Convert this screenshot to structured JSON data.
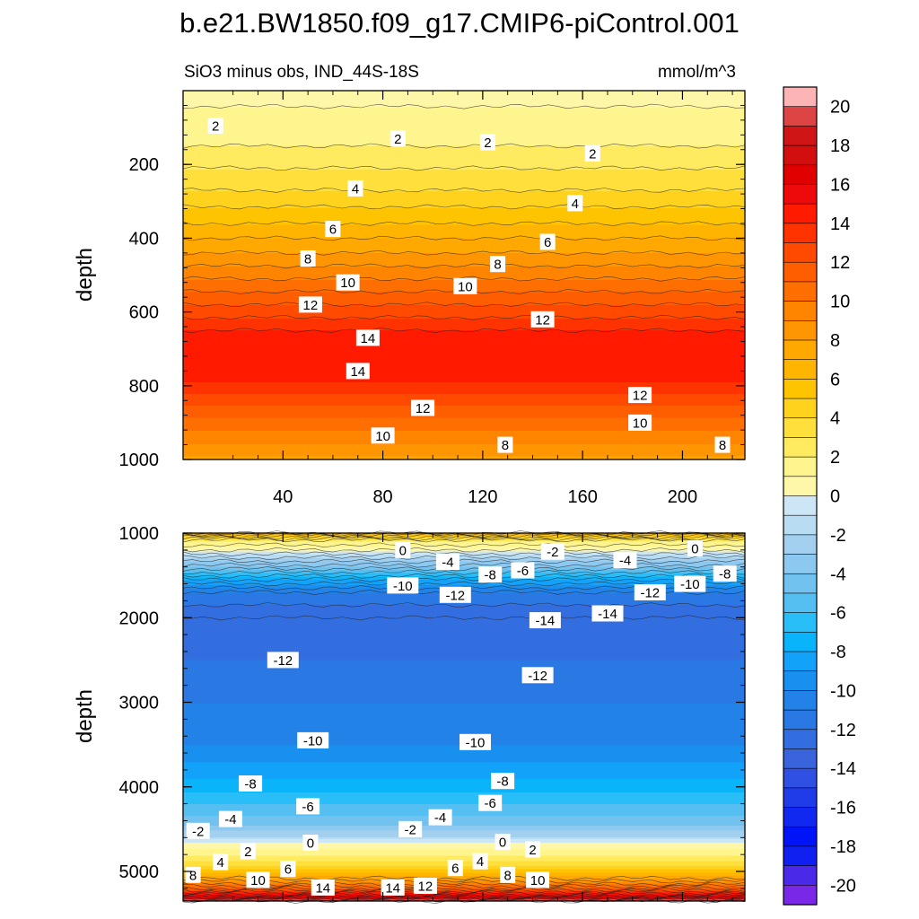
{
  "title": "b.e21.BW1850.f09_g17.CMIP6-piControl.001",
  "chart_data": [
    {
      "type": "heatmap",
      "panel": "top",
      "subtitle_left": "SiO3 minus obs, IND_44S-18S",
      "subtitle_right": "mmol/m^3",
      "ylabel": "depth",
      "xlim": [
        0,
        225
      ],
      "ylim": [
        0,
        1000
      ],
      "y_inverted": true,
      "xticks": [
        40,
        80,
        120,
        160,
        200
      ],
      "yticks": [
        200,
        400,
        600,
        800,
        1000
      ],
      "profile": [
        {
          "depth": 0,
          "value": 0.5
        },
        {
          "depth": 60,
          "value": 1.2
        },
        {
          "depth": 150,
          "value": 2
        },
        {
          "depth": 270,
          "value": 4
        },
        {
          "depth": 360,
          "value": 6
        },
        {
          "depth": 440,
          "value": 8
        },
        {
          "depth": 510,
          "value": 10
        },
        {
          "depth": 580,
          "value": 12
        },
        {
          "depth": 650,
          "value": 14
        },
        {
          "depth": 720,
          "value": 14.8
        },
        {
          "depth": 790,
          "value": 14
        },
        {
          "depth": 850,
          "value": 12
        },
        {
          "depth": 920,
          "value": 10
        },
        {
          "depth": 990,
          "value": 8
        },
        {
          "depth": 1000,
          "value": 7.8
        }
      ],
      "contour_labels": [
        {
          "text": "2",
          "x": 13,
          "depth": 95
        },
        {
          "text": "2",
          "x": 86,
          "depth": 130
        },
        {
          "text": "2",
          "x": 122,
          "depth": 140
        },
        {
          "text": "2",
          "x": 164,
          "depth": 170
        },
        {
          "text": "4",
          "x": 69,
          "depth": 265
        },
        {
          "text": "4",
          "x": 157,
          "depth": 305
        },
        {
          "text": "6",
          "x": 60,
          "depth": 375
        },
        {
          "text": "6",
          "x": 146,
          "depth": 410
        },
        {
          "text": "8",
          "x": 50,
          "depth": 455
        },
        {
          "text": "8",
          "x": 126,
          "depth": 470
        },
        {
          "text": "10",
          "x": 66,
          "depth": 520
        },
        {
          "text": "10",
          "x": 113,
          "depth": 530
        },
        {
          "text": "12",
          "x": 51,
          "depth": 580
        },
        {
          "text": "12",
          "x": 144,
          "depth": 620
        },
        {
          "text": "14",
          "x": 74,
          "depth": 670
        },
        {
          "text": "14",
          "x": 70,
          "depth": 760
        },
        {
          "text": "12",
          "x": 96,
          "depth": 860
        },
        {
          "text": "10",
          "x": 80,
          "depth": 935
        },
        {
          "text": "8",
          "x": 129,
          "depth": 960
        },
        {
          "text": "12",
          "x": 183,
          "depth": 825
        },
        {
          "text": "10",
          "x": 183,
          "depth": 900
        },
        {
          "text": "8",
          "x": 216,
          "depth": 960
        }
      ]
    },
    {
      "type": "heatmap",
      "panel": "bottom",
      "ylabel": "depth",
      "xlim": [
        0,
        225
      ],
      "ylim": [
        1000,
        5350
      ],
      "y_inverted": true,
      "yticks": [
        1000,
        2000,
        3000,
        4000,
        5000
      ],
      "profile": [
        {
          "depth": 1000,
          "value": 7
        },
        {
          "depth": 1080,
          "value": 2
        },
        {
          "depth": 1200,
          "value": 0
        },
        {
          "depth": 1380,
          "value": -4
        },
        {
          "depth": 1550,
          "value": -8
        },
        {
          "depth": 1700,
          "value": -11
        },
        {
          "depth": 2000,
          "value": -13
        },
        {
          "depth": 2500,
          "value": -12
        },
        {
          "depth": 3000,
          "value": -11
        },
        {
          "depth": 3500,
          "value": -10
        },
        {
          "depth": 3900,
          "value": -8
        },
        {
          "depth": 4200,
          "value": -6
        },
        {
          "depth": 4450,
          "value": -4
        },
        {
          "depth": 4580,
          "value": -2
        },
        {
          "depth": 4650,
          "value": 0
        },
        {
          "depth": 4800,
          "value": 2
        },
        {
          "depth": 4920,
          "value": 4
        },
        {
          "depth": 5000,
          "value": 6
        },
        {
          "depth": 5080,
          "value": 8
        },
        {
          "depth": 5150,
          "value": 10
        },
        {
          "depth": 5200,
          "value": 12
        },
        {
          "depth": 5240,
          "value": 14
        },
        {
          "depth": 5280,
          "value": 16
        },
        {
          "depth": 5310,
          "value": 18
        },
        {
          "depth": 5350,
          "value": 21
        }
      ],
      "contour_labels": [
        {
          "text": "0",
          "x": 88,
          "depth": 1200
        },
        {
          "text": "-2",
          "x": 148,
          "depth": 1220
        },
        {
          "text": "0",
          "x": 205,
          "depth": 1180
        },
        {
          "text": "-4",
          "x": 106,
          "depth": 1340
        },
        {
          "text": "-4",
          "x": 177,
          "depth": 1320
        },
        {
          "text": "-6",
          "x": 136,
          "depth": 1440
        },
        {
          "text": "-8",
          "x": 123,
          "depth": 1490
        },
        {
          "text": "-8",
          "x": 217,
          "depth": 1480
        },
        {
          "text": "-10",
          "x": 88,
          "depth": 1620
        },
        {
          "text": "-10",
          "x": 203,
          "depth": 1600
        },
        {
          "text": "-12",
          "x": 109,
          "depth": 1730
        },
        {
          "text": "-12",
          "x": 187,
          "depth": 1700
        },
        {
          "text": "-14",
          "x": 145,
          "depth": 2030
        },
        {
          "text": "-14",
          "x": 170,
          "depth": 1950
        },
        {
          "text": "-12",
          "x": 40,
          "depth": 2500
        },
        {
          "text": "-12",
          "x": 142,
          "depth": 2680
        },
        {
          "text": "-10",
          "x": 52,
          "depth": 3450
        },
        {
          "text": "-10",
          "x": 117,
          "depth": 3470
        },
        {
          "text": "-8",
          "x": 27,
          "depth": 3960
        },
        {
          "text": "-8",
          "x": 128,
          "depth": 3930
        },
        {
          "text": "-6",
          "x": 50,
          "depth": 4230
        },
        {
          "text": "-6",
          "x": 123,
          "depth": 4190
        },
        {
          "text": "-4",
          "x": 19,
          "depth": 4380
        },
        {
          "text": "-4",
          "x": 103,
          "depth": 4360
        },
        {
          "text": "-2",
          "x": 6,
          "depth": 4520
        },
        {
          "text": "-2",
          "x": 91,
          "depth": 4500
        },
        {
          "text": "0",
          "x": 51,
          "depth": 4660
        },
        {
          "text": "0",
          "x": 128,
          "depth": 4650
        },
        {
          "text": "2",
          "x": 26,
          "depth": 4760
        },
        {
          "text": "2",
          "x": 140,
          "depth": 4740
        },
        {
          "text": "4",
          "x": 15,
          "depth": 4890
        },
        {
          "text": "4",
          "x": 119,
          "depth": 4880
        },
        {
          "text": "6",
          "x": 42,
          "depth": 4970
        },
        {
          "text": "6",
          "x": 109,
          "depth": 4960
        },
        {
          "text": "8",
          "x": 4,
          "depth": 5040
        },
        {
          "text": "8",
          "x": 130,
          "depth": 5040
        },
        {
          "text": "10",
          "x": 30,
          "depth": 5100
        },
        {
          "text": "10",
          "x": 142,
          "depth": 5100
        },
        {
          "text": "14",
          "x": 56,
          "depth": 5190
        },
        {
          "text": "14",
          "x": 84,
          "depth": 5190
        },
        {
          "text": "12",
          "x": 97,
          "depth": 5170
        }
      ]
    }
  ],
  "colorbar": {
    "labels": [
      "20",
      "18",
      "16",
      "14",
      "12",
      "10",
      "8",
      "6",
      "4",
      "2",
      "0",
      "-2",
      "-4",
      "-6",
      "-8",
      "-10",
      "-12",
      "-14",
      "-16",
      "-18",
      "-20"
    ],
    "levels": [
      21,
      20,
      19,
      18,
      17,
      16,
      15,
      14,
      13,
      12,
      11,
      10,
      9,
      8,
      7,
      6,
      5,
      4,
      3,
      2,
      1,
      0,
      -1,
      -2,
      -3,
      -4,
      -5,
      -6,
      -7,
      -8,
      -9,
      -10,
      -11,
      -12,
      -13,
      -14,
      -15,
      -16,
      -17,
      -18,
      -19,
      -20,
      -21
    ]
  },
  "palette": {
    "p_21": "#fcb4b4",
    "p_20": "#f08080",
    "p_19": "#dd4545",
    "p_18": "#cf1515",
    "p_17": "#d20e0e",
    "p_16": "#e10000",
    "p_15": "#ee0a0a",
    "p_14": "#ff1a00",
    "p_13": "#ff3300",
    "p_12": "#ff4a00",
    "p_11": "#ff5e00",
    "p_10": "#ff6e00",
    "p_9": "#ff8400",
    "p_8": "#ff9500",
    "p_7": "#ffa800",
    "p_6": "#ffb400",
    "p_5": "#ffc400",
    "p_4": "#ffd21e",
    "p_3": "#ffdf3c",
    "p_2": "#ffea60",
    "p_1": "#fff58e",
    "p_0": "#fff7a8",
    "n_1": "#cce6f5",
    "n_2": "#b8dcf2",
    "n_3": "#a4d0ef",
    "n_4": "#8cc8f0",
    "n_5": "#72c2f0",
    "n_6": "#55bff2",
    "n_7": "#2abef8",
    "n_8": "#0ab4fa",
    "n_9": "#12a2fa",
    "n_10": "#1890f0",
    "n_11": "#2282e8",
    "n_12": "#2a78e4",
    "n_13": "#326ee0",
    "n_14": "#3a64dc",
    "n_15": "#3050e4",
    "n_16": "#203ce8",
    "n_17": "#1028f0",
    "n_18": "#0014f8",
    "n_19": "#1020f0",
    "n_20": "#4a2ae8",
    "n_21": "#7a28e8"
  }
}
